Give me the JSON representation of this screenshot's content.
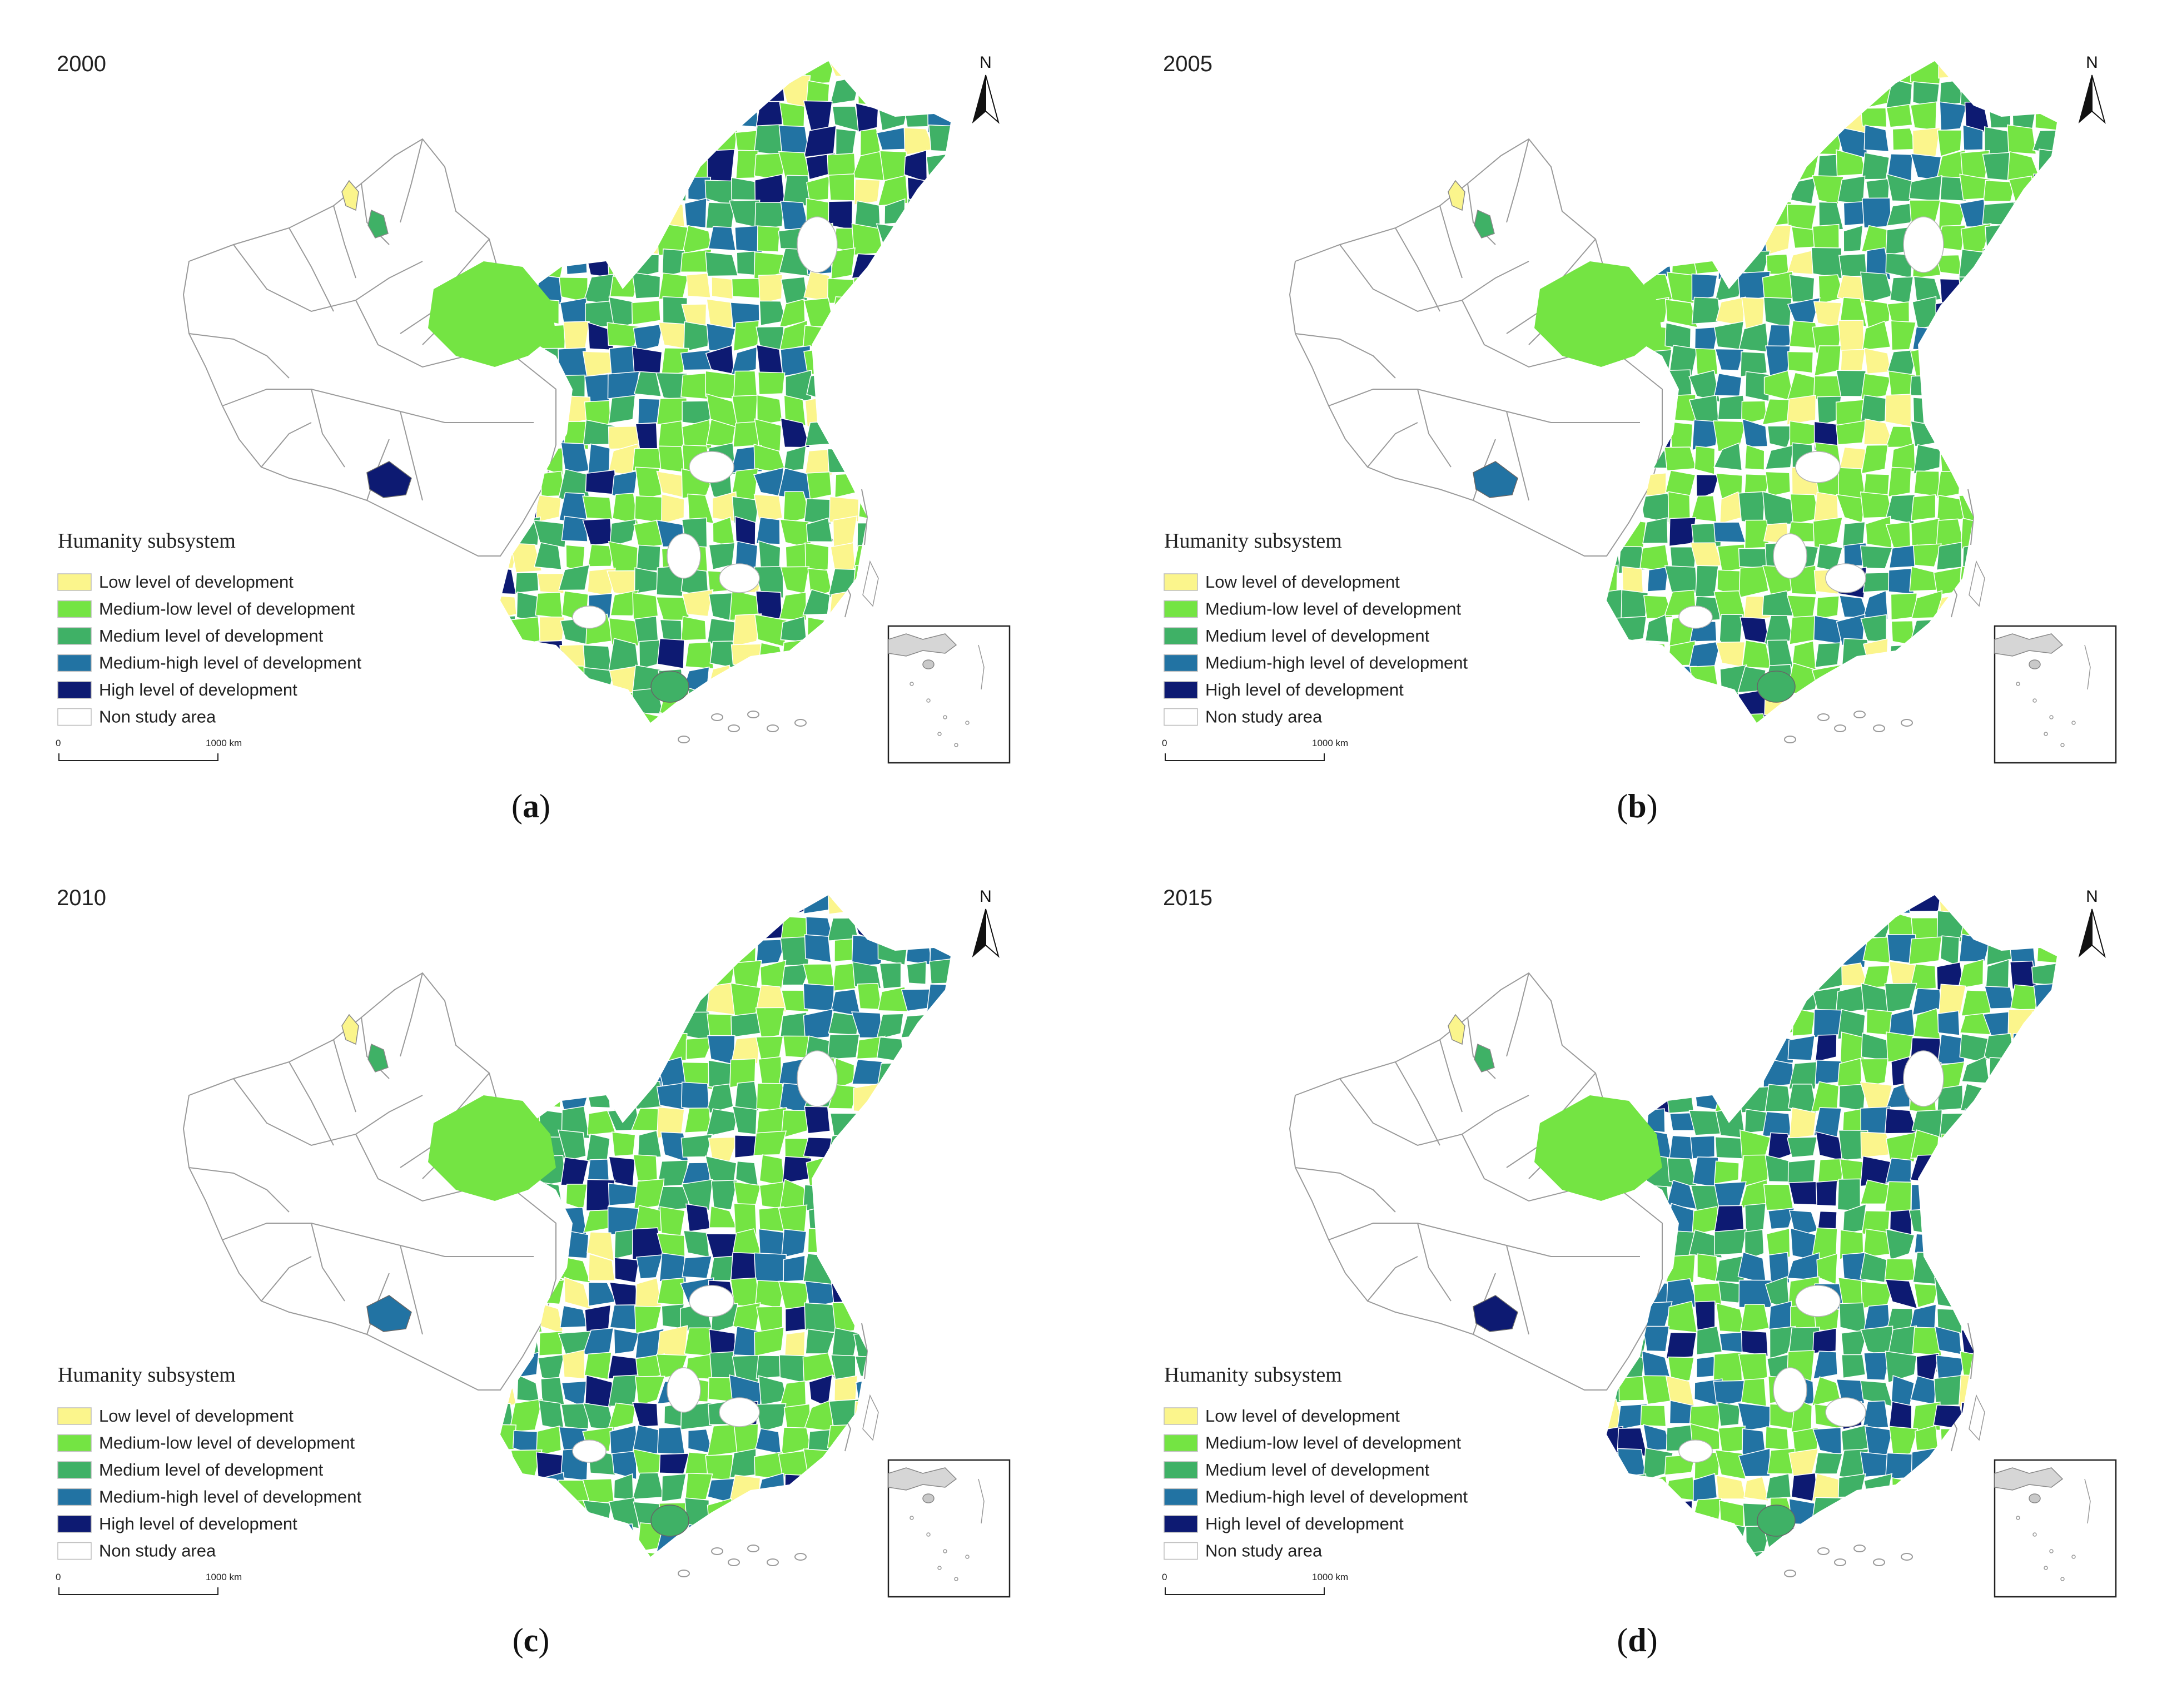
{
  "panels": [
    {
      "id": "a",
      "year": "2000",
      "caption_open": "(",
      "caption_letter": "a",
      "caption_close": ")",
      "remote_region_class": "high"
    },
    {
      "id": "b",
      "year": "2005",
      "caption_open": "(",
      "caption_letter": "b",
      "caption_close": ")",
      "remote_region_class": "mediumHigh"
    },
    {
      "id": "c",
      "year": "2010",
      "caption_open": "(",
      "caption_letter": "c",
      "caption_close": ")",
      "remote_region_class": "mediumHigh"
    },
    {
      "id": "d",
      "year": "2015",
      "caption_open": "(",
      "caption_letter": "d",
      "caption_close": ")",
      "remote_region_class": "high"
    }
  ],
  "legend": {
    "title": "Humanity subsystem",
    "items": [
      {
        "key": "low",
        "label": "Low level of development",
        "color": "#fbf58c"
      },
      {
        "key": "mediumLow",
        "label": "Medium-low level of development",
        "color": "#74e443"
      },
      {
        "key": "medium",
        "label": "Medium level of development",
        "color": "#3fb166"
      },
      {
        "key": "mediumHigh",
        "label": "Medium-high level of development",
        "color": "#2273a3"
      },
      {
        "key": "high",
        "label": "High level of development",
        "color": "#0d1a72"
      },
      {
        "key": "none",
        "label": "Non study area",
        "color": "#ffffff"
      }
    ]
  },
  "scale_bar": {
    "start": "0",
    "end": "1000 km"
  },
  "north_arrow": {
    "label": "N"
  },
  "icons": {
    "north_arrow": "north-arrow-icon"
  }
}
